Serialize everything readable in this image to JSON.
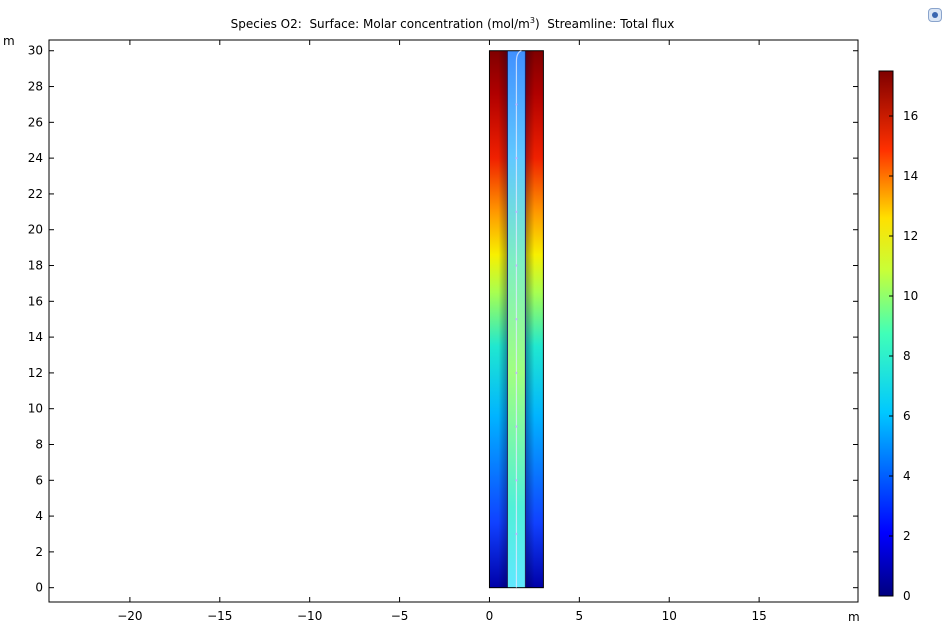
{
  "title": {
    "species": "Species O2:",
    "surface_prefix": "Surface: Molar concentration (mol/m",
    "surface_sup": "3",
    "surface_suffix": ")",
    "streamline": "Streamline: Total flux"
  },
  "toolbar": {
    "icon": "plot-settings-icon"
  },
  "chart_data": {
    "type": "heatmap",
    "title": "Species O2:  Surface: Molar concentration (mol/m3)  Streamline: Total flux",
    "xunit": "m",
    "yunit": "m",
    "xlim": [
      -24.5,
      20.5
    ],
    "ylim": [
      -0.8,
      30.6
    ],
    "x_ticks": [
      -20,
      -15,
      -10,
      -5,
      0,
      5,
      10,
      15
    ],
    "y_ticks": [
      0,
      2,
      4,
      6,
      8,
      10,
      12,
      14,
      16,
      18,
      20,
      22,
      24,
      26,
      28,
      30
    ],
    "domain": {
      "x": [
        0,
        3
      ],
      "y": [
        0,
        30
      ]
    },
    "inner_channel": {
      "x": [
        1,
        2
      ]
    },
    "colorbar": {
      "range": [
        0,
        17.5
      ],
      "ticks": [
        0,
        2,
        4,
        6,
        8,
        10,
        12,
        14,
        16
      ],
      "colormap": "rainbow"
    },
    "streamline": {
      "x": 1.5,
      "y_range": [
        0,
        30
      ],
      "label": "Total flux"
    },
    "grid": false
  }
}
